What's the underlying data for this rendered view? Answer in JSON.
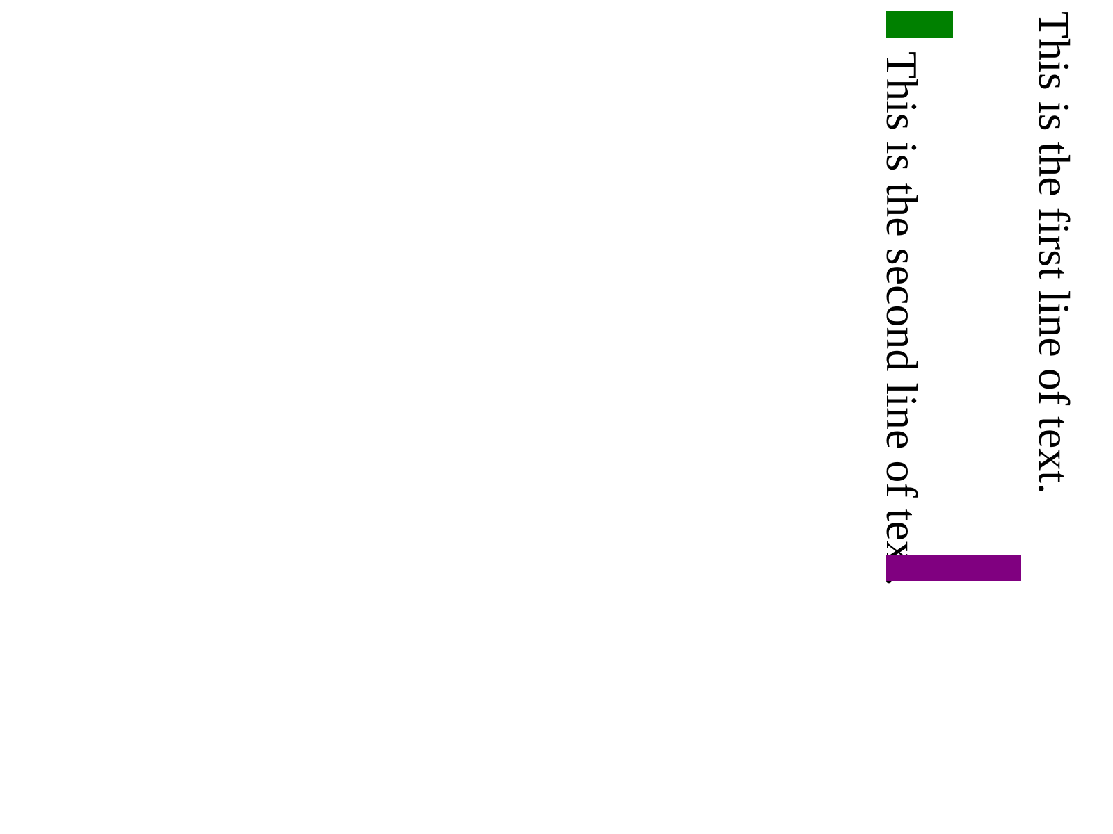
{
  "lines": [
    {
      "text": "This is the first line of text."
    },
    {
      "text": "This is the second line of text."
    }
  ],
  "colors": {
    "green_block": "#008000",
    "purple_block": "#800080",
    "text": "#000000",
    "background": "#ffffff"
  }
}
